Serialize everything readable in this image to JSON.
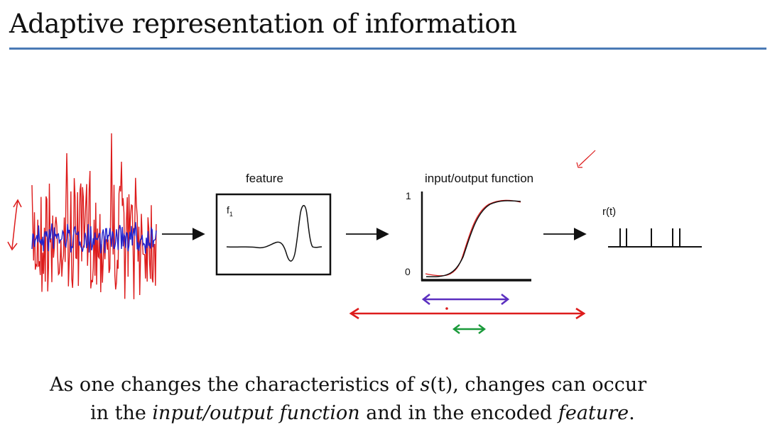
{
  "slide": {
    "title": "Adaptive representation of information"
  },
  "diagram": {
    "feature_label": "feature",
    "feature_symbol": "f",
    "feature_subscript": "1",
    "io_label": "input/output function",
    "io_tick_top": "1",
    "io_tick_bottom": "0",
    "output_label": "r(t)"
  },
  "caption": {
    "line1_a": "As one changes the characteristics of ",
    "line1_s": "s",
    "line1_b": "(t), changes can occur",
    "line2_a": "in the ",
    "line2_io": "input/output function",
    "line2_b": " and in the encoded ",
    "line2_feature": "feature",
    "line2_c": "."
  },
  "colors": {
    "signal_high_variance": "#dd1c1c",
    "signal_low_variance": "#2222cc",
    "arrow_red": "#dd1c1c",
    "arrow_purple": "#5b2fc0",
    "arrow_green": "#1a9a3a",
    "rule": "#4a7ab5"
  }
}
